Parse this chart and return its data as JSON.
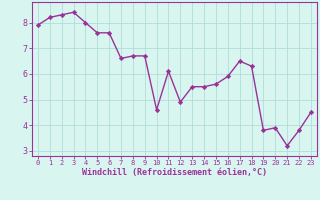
{
  "x": [
    0,
    1,
    2,
    3,
    4,
    5,
    6,
    7,
    8,
    9,
    10,
    11,
    12,
    13,
    14,
    15,
    16,
    17,
    18,
    19,
    20,
    21,
    22,
    23
  ],
  "y": [
    7.9,
    8.2,
    8.3,
    8.4,
    8.0,
    7.6,
    7.6,
    6.6,
    6.7,
    6.7,
    4.6,
    6.1,
    4.9,
    5.5,
    5.5,
    5.6,
    5.9,
    6.5,
    6.3,
    3.8,
    3.9,
    3.2,
    3.8,
    4.5
  ],
  "line_color": "#993399",
  "marker": "D",
  "marker_size": 2.2,
  "linewidth": 1.0,
  "xlabel": "Windchill (Refroidissement éolien,°C)",
  "xlim": [
    -0.5,
    23.5
  ],
  "ylim": [
    2.8,
    8.8
  ],
  "yticks": [
    3,
    4,
    5,
    6,
    7,
    8
  ],
  "xticks": [
    0,
    1,
    2,
    3,
    4,
    5,
    6,
    7,
    8,
    9,
    10,
    11,
    12,
    13,
    14,
    15,
    16,
    17,
    18,
    19,
    20,
    21,
    22,
    23
  ],
  "background_color": "#d8f5f0",
  "grid_color": "#b0ddd8",
  "tick_color": "#993399",
  "label_color": "#993399",
  "axis_color": "#993399",
  "xtick_fontsize": 5.0,
  "ytick_fontsize": 6.0,
  "xlabel_fontsize": 6.0
}
